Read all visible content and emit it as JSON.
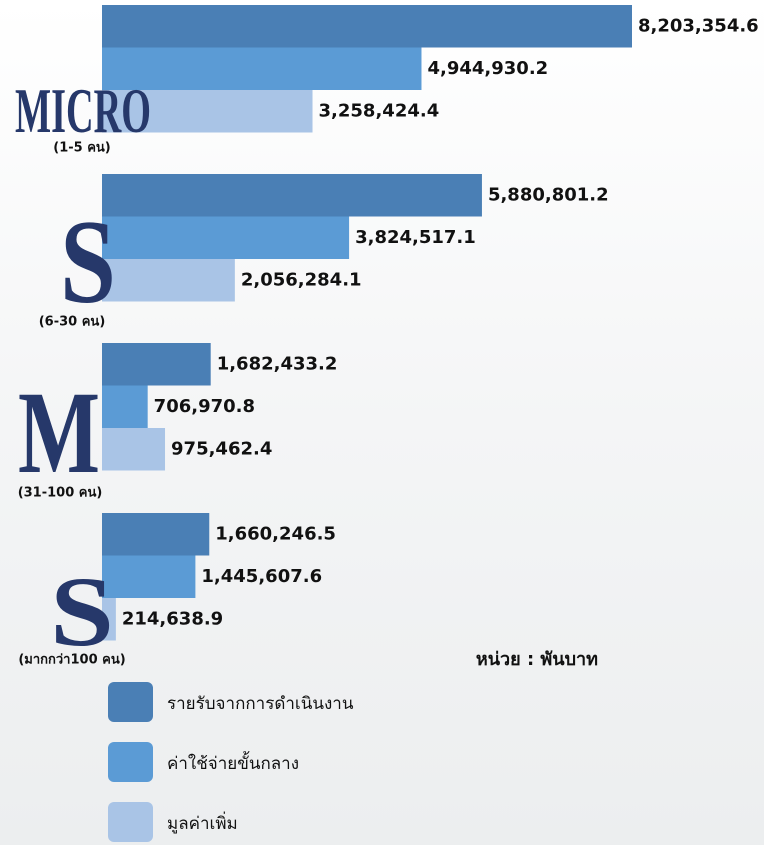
{
  "chart_data": {
    "type": "bar",
    "orientation": "horizontal",
    "categories": [
      "MICRO",
      "S",
      "M",
      "S"
    ],
    "category_notes": [
      "(1-5 คน)",
      "(6-30 คน)",
      "(31-100 คน)",
      "(มากกว่า100 คน)"
    ],
    "unit": "หน่วย : พันบาท",
    "series": [
      {
        "name": "รายรับจากการดำเนินงาน",
        "color": "#4a7fb5",
        "values": [
          8203354.6,
          5880801.2,
          1682433.2,
          1660246.5
        ],
        "value_labels": [
          "8,203,354.6",
          "5,880,801.2",
          "1,682,433.2",
          "1,660,246.5"
        ]
      },
      {
        "name": "ค่าใช้จ่ายขั้นกลาง",
        "color": "#5b9bd5",
        "values": [
          4944930.2,
          3824517.1,
          706970.8,
          1445607.6
        ],
        "value_labels": [
          "4,944,930.2",
          "3,824,517.1",
          "706,970.8",
          "1,445,607.6"
        ]
      },
      {
        "name": "มูลค่าเพิ่ม",
        "color": "#a9c4e6",
        "values": [
          3258424.4,
          2056284.1,
          975462.4,
          214638.9
        ],
        "value_labels": [
          "3,258,424.4",
          "2,056,284.1",
          "975,462.4",
          "214,638.9"
        ]
      }
    ]
  }
}
